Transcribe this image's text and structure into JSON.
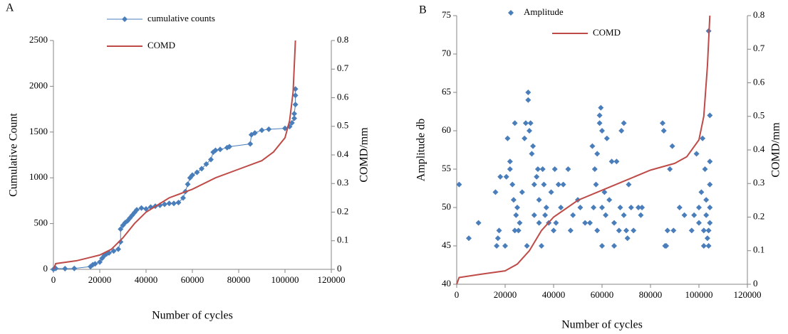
{
  "chart_data": [
    {
      "type": "line",
      "label": "A",
      "xlabel": "Number of cycles",
      "ylabel": "Cumulative Count",
      "y2label": "COMD/mm",
      "xlim": [
        0,
        120000
      ],
      "xticks": [
        0,
        20000,
        40000,
        60000,
        80000,
        100000,
        120000
      ],
      "ylim": [
        0,
        2500
      ],
      "yticks": [
        0,
        500,
        1000,
        1500,
        2000,
        2500
      ],
      "y2lim": [
        0,
        0.8
      ],
      "y2ticks": [
        0,
        0.1,
        0.2,
        0.3,
        0.4,
        0.5,
        0.6,
        0.7,
        0.8
      ],
      "legend": "top",
      "series": [
        {
          "name": "cumulative counts",
          "type": "line",
          "marker": "diamond",
          "color": "#4a7ebb",
          "x": [
            0,
            1000,
            5000,
            9000,
            16000,
            17000,
            18000,
            20000,
            21000,
            22000,
            23000,
            24000,
            26000,
            28000,
            29000,
            29000,
            30000,
            31000,
            32000,
            33000,
            34000,
            35000,
            36000,
            38000,
            40000,
            42000,
            44000,
            46000,
            48000,
            50000,
            52000,
            54000,
            56000,
            57000,
            58000,
            59000,
            60000,
            62000,
            64000,
            66000,
            68000,
            69000,
            70000,
            72000,
            75000,
            76000,
            85000,
            85500,
            87000,
            90000,
            93000,
            100000,
            102000,
            103000,
            104000,
            104000,
            104500,
            104500,
            104500
          ],
          "values": [
            0,
            10,
            8,
            10,
            30,
            50,
            60,
            80,
            120,
            150,
            170,
            180,
            200,
            220,
            300,
            440,
            480,
            510,
            530,
            560,
            590,
            620,
            650,
            670,
            660,
            680,
            690,
            700,
            710,
            720,
            720,
            730,
            780,
            850,
            930,
            1000,
            1030,
            1060,
            1100,
            1150,
            1200,
            1280,
            1300,
            1310,
            1330,
            1340,
            1370,
            1470,
            1490,
            1520,
            1530,
            1540,
            1560,
            1600,
            1650,
            1700,
            1800,
            1900,
            1970
          ]
        },
        {
          "name": "COMD",
          "type": "line",
          "axis": "y2",
          "color": "#be4b48",
          "x": [
            0,
            1000,
            10000,
            20000,
            25000,
            30000,
            35000,
            40000,
            50000,
            60000,
            70000,
            80000,
            90000,
            95000,
            100000,
            102000,
            103500,
            104500
          ],
          "values": [
            0,
            0.02,
            0.03,
            0.05,
            0.07,
            0.11,
            0.16,
            0.2,
            0.25,
            0.28,
            0.32,
            0.35,
            0.38,
            0.41,
            0.46,
            0.52,
            0.62,
            0.8
          ]
        }
      ]
    },
    {
      "type": "scatter",
      "label": "B",
      "xlabel": "Number of cycles",
      "ylabel": "Amplitude db",
      "y2label": "COMD/mm",
      "xlim": [
        0,
        120000
      ],
      "xticks": [
        0,
        20000,
        40000,
        60000,
        80000,
        100000,
        120000
      ],
      "ylim": [
        40,
        75
      ],
      "yticks": [
        40,
        45,
        50,
        55,
        60,
        65,
        70,
        75
      ],
      "y2lim": [
        0,
        0.8
      ],
      "y2ticks": [
        0,
        0.1,
        0.2,
        0.3,
        0.4,
        0.5,
        0.6,
        0.7,
        0.8
      ],
      "legend": "top",
      "series": [
        {
          "name": "Amplitude",
          "type": "scatter",
          "marker": "diamond",
          "color": "#4a7ebb",
          "x": [
            1000,
            5000,
            9000,
            16000,
            16500,
            17000,
            17500,
            18000,
            20000,
            20500,
            21000,
            22000,
            22000,
            23000,
            23500,
            24000,
            24000,
            24500,
            25000,
            25500,
            26000,
            27000,
            28000,
            28500,
            29000,
            29500,
            29500,
            30000,
            30500,
            31000,
            31500,
            32000,
            32000,
            33000,
            33500,
            34000,
            34000,
            35000,
            35500,
            36000,
            36500,
            37000,
            38000,
            39000,
            40000,
            40500,
            41000,
            42000,
            43000,
            44000,
            46000,
            47000,
            48000,
            50000,
            51000,
            53000,
            55000,
            56000,
            56500,
            57000,
            57500,
            58000,
            58000,
            59000,
            59000,
            59500,
            60000,
            60000,
            60000,
            61000,
            61500,
            62000,
            63000,
            64000,
            65000,
            65000,
            66000,
            67000,
            67500,
            68000,
            69000,
            69000,
            70000,
            70500,
            71000,
            72000,
            73000,
            75000,
            76000,
            76500,
            85000,
            85500,
            86000,
            86500,
            87000,
            88000,
            89000,
            89500,
            92000,
            94000,
            97000,
            98000,
            99000,
            100000,
            100000,
            101000,
            101500,
            102000,
            102000,
            102500,
            103000,
            103000,
            103500,
            104000,
            104000,
            104000,
            104500,
            104500,
            104500,
            104500,
            104500
          ],
          "values": [
            53,
            46,
            48,
            52,
            45,
            46,
            47,
            54,
            45,
            54,
            59,
            55,
            56,
            53,
            51,
            61,
            47,
            49,
            50,
            47,
            48,
            52,
            59,
            61,
            45,
            65,
            64,
            60,
            61,
            57,
            58,
            49,
            53,
            54,
            55,
            51,
            48,
            45,
            55,
            53,
            49,
            50,
            48,
            52,
            47,
            55,
            48,
            53,
            50,
            53,
            55,
            47,
            49,
            51,
            50,
            48,
            48,
            58,
            50,
            55,
            53,
            57,
            47,
            62,
            61,
            63,
            60,
            50,
            45,
            52,
            49,
            59,
            51,
            56,
            48,
            45,
            56,
            47,
            50,
            60,
            61,
            49,
            47,
            46,
            53,
            50,
            47,
            50,
            49,
            50,
            61,
            60,
            45,
            45,
            47,
            55,
            58,
            47,
            50,
            49,
            47,
            49,
            57,
            48,
            50,
            52,
            59,
            47,
            45,
            55,
            51,
            49,
            46,
            45,
            47,
            73,
            62,
            56,
            53,
            50,
            48
          ]
        },
        {
          "name": "COMD",
          "type": "line",
          "axis": "y2",
          "color": "#be4b48",
          "x": [
            0,
            1000,
            10000,
            20000,
            25000,
            30000,
            35000,
            40000,
            50000,
            60000,
            70000,
            80000,
            90000,
            95000,
            100000,
            102000,
            103500,
            104500
          ],
          "values": [
            0,
            0.02,
            0.03,
            0.04,
            0.06,
            0.1,
            0.16,
            0.2,
            0.25,
            0.28,
            0.31,
            0.34,
            0.36,
            0.38,
            0.43,
            0.5,
            0.65,
            0.8
          ]
        }
      ]
    }
  ]
}
